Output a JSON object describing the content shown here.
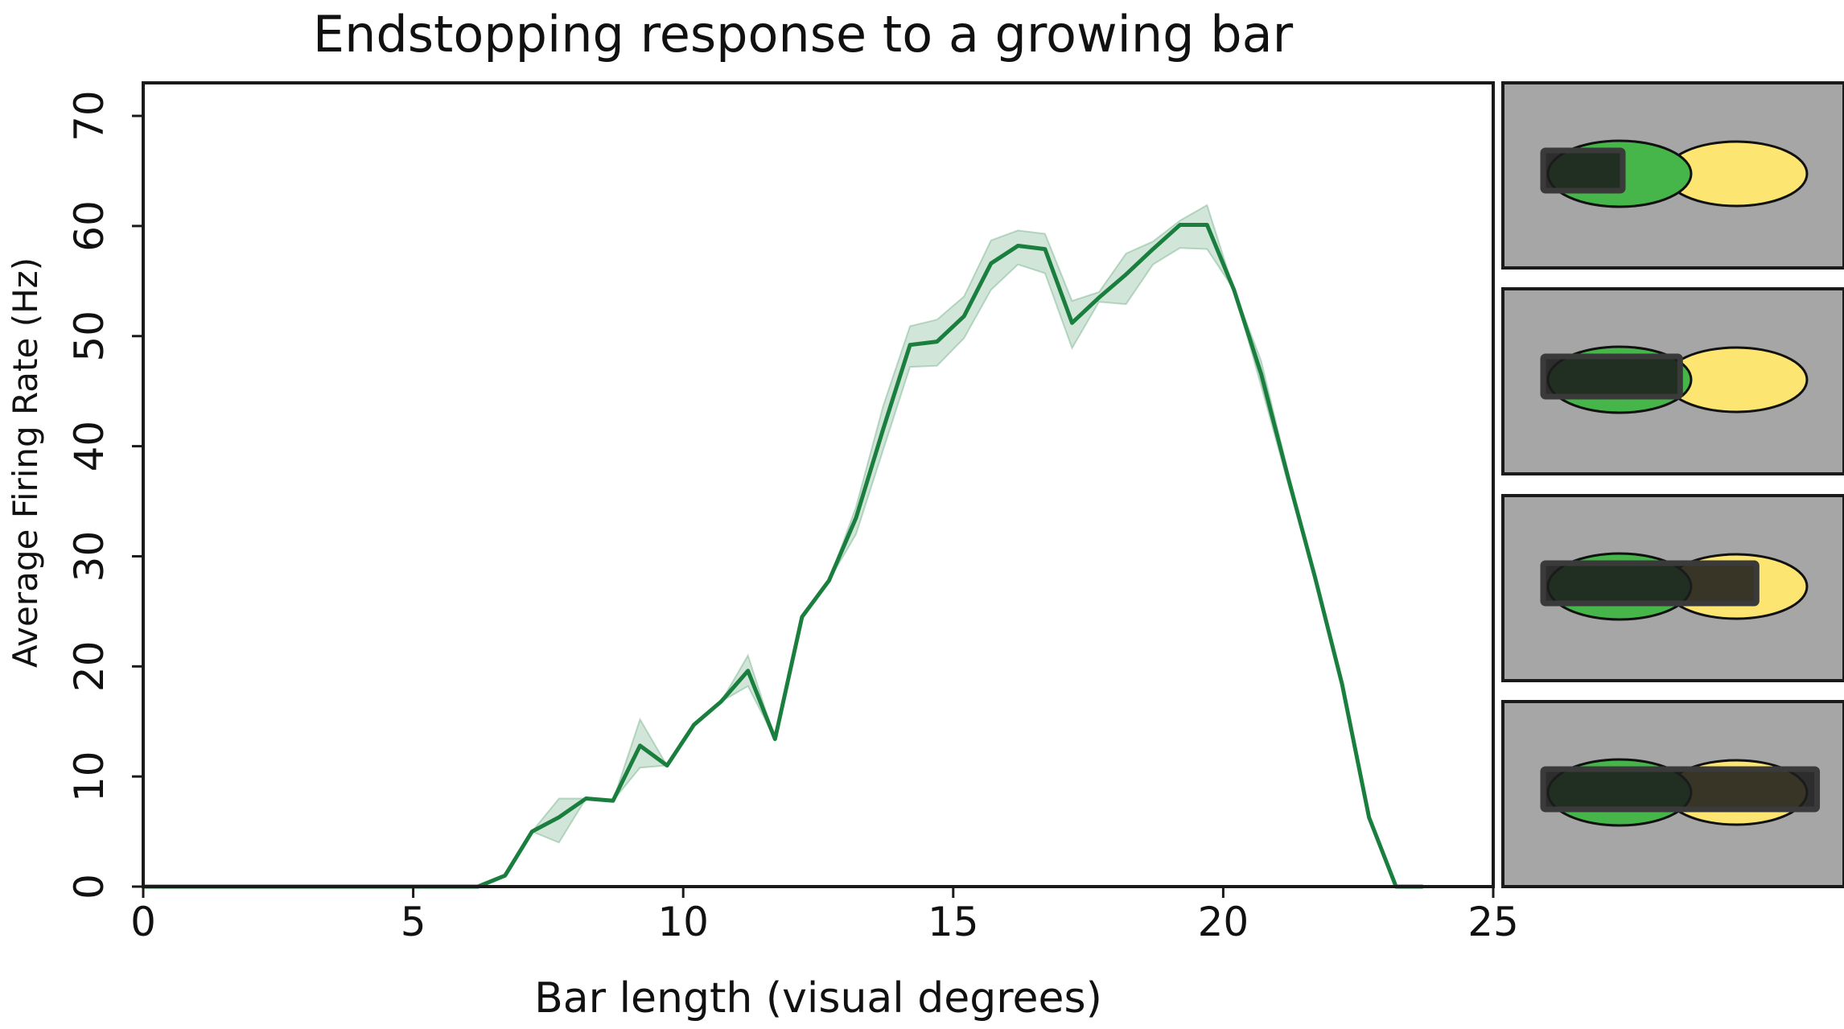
{
  "chart_data": {
    "type": "line",
    "title": "Endstopping response to a growing bar",
    "xlabel": "Bar length (visual degrees)",
    "ylabel": "Average Firing Rate (Hz)",
    "xlim": [
      0,
      25
    ],
    "ylim": [
      0,
      73
    ],
    "xticks": [
      0,
      5,
      10,
      15,
      20,
      25
    ],
    "yticks": [
      0,
      10,
      20,
      30,
      40,
      50,
      60,
      70
    ],
    "grid": false,
    "series": [
      {
        "color": "#1a7f3e",
        "band_color": "#1a7f3e",
        "x": [
          0,
          6.2,
          6.7,
          7.2,
          7.7,
          8.2,
          8.7,
          9.2,
          9.7,
          10.2,
          10.7,
          11.2,
          11.7,
          12.2,
          12.7,
          13.2,
          13.7,
          14.2,
          14.7,
          15.2,
          15.7,
          16.2,
          16.7,
          17.2,
          17.7,
          18.2,
          18.7,
          19.2,
          19.7,
          20.2,
          20.7,
          21.2,
          21.7,
          22.2,
          22.7,
          23.2,
          23.7
        ],
        "y": [
          0,
          0,
          1,
          5,
          6.3,
          8,
          7.8,
          12.8,
          11,
          14.7,
          16.8,
          19.6,
          13.4,
          24.5,
          27.8,
          33.5,
          41.5,
          49.2,
          49.5,
          51.8,
          56.6,
          58.2,
          57.9,
          51.2,
          53.5,
          55.6,
          57.9,
          60.1,
          60.1,
          54.2,
          46.6,
          37.2,
          28.1,
          18.4,
          6.3,
          0,
          0
        ],
        "upper": [
          0,
          0,
          1,
          5,
          8,
          8,
          7.8,
          15.2,
          11,
          14.7,
          16.8,
          21,
          13.4,
          24.5,
          27.8,
          34.5,
          43.6,
          50.9,
          51.5,
          53.6,
          58.7,
          59.6,
          59.3,
          53.2,
          54,
          57.5,
          58.6,
          60.5,
          61.9,
          54.2,
          47.8,
          37.7,
          28.1,
          18.4,
          6.3,
          0,
          0
        ],
        "lower": [
          0,
          0,
          1,
          5,
          4,
          8,
          7.8,
          10.8,
          11,
          14.7,
          16.8,
          18.2,
          13.4,
          24.5,
          27.8,
          32,
          39.6,
          47.2,
          47.3,
          49.8,
          54.2,
          56.5,
          55.7,
          48.9,
          53.1,
          52.9,
          56.5,
          58,
          57.9,
          54.2,
          45.5,
          36.6,
          28.1,
          18.4,
          6.3,
          0,
          0
        ]
      }
    ]
  },
  "stimulus_panels": {
    "background": "#a6a6a6",
    "receptive_field_color": "#46b54a",
    "surround_color": "#fce570",
    "bar_color": "#1c1c1c",
    "bar_fractions": [
      0.25,
      0.43,
      0.67,
      0.86
    ]
  }
}
